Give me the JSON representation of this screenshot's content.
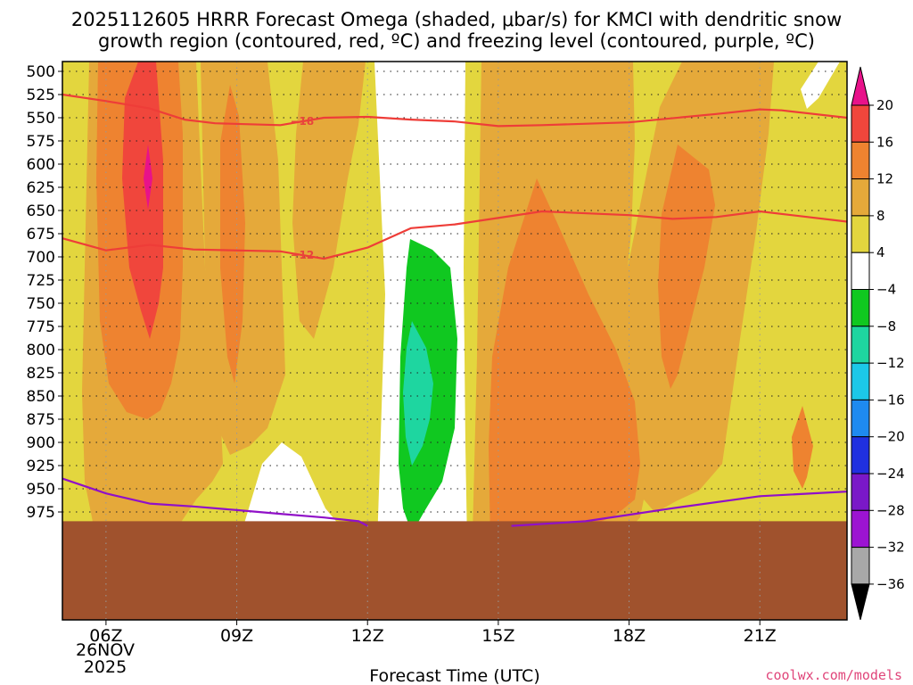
{
  "chart_data": {
    "type": "heatmap",
    "title_line1": "2025112605 HRRR Forecast Omega (shaded, μbar/s) for KMCI with dendritic snow",
    "title_line2": "growth region (contoured, red, ºC) and freezing level (contoured, purple, ºC)",
    "xlabel": "Forecast Time (UTC)",
    "x_ticks": [
      {
        "hour": 6,
        "label": "06Z"
      },
      {
        "hour": 9,
        "label": "09Z"
      },
      {
        "hour": 12,
        "label": "12Z"
      },
      {
        "hour": 15,
        "label": "15Z"
      },
      {
        "hour": 18,
        "label": "18Z"
      },
      {
        "hour": 21,
        "label": "21Z"
      }
    ],
    "x_date_line1": "26NOV",
    "x_date_line2": "2025",
    "xlim": [
      5.0,
      23.0
    ],
    "y_levels": [
      500,
      525,
      550,
      575,
      600,
      625,
      650,
      675,
      700,
      725,
      750,
      775,
      800,
      825,
      850,
      875,
      900,
      925,
      950,
      975
    ],
    "y_tick_labels": [
      "500",
      "525",
      "550",
      "575",
      "600",
      "625",
      "650",
      "675",
      "700",
      "725",
      "750",
      "775",
      "800",
      "825",
      "850",
      "875",
      "900",
      "925",
      "950",
      "975"
    ],
    "omega_bins": [
      {
        "label": "20",
        "color": "#e8128a"
      },
      {
        "label": "16",
        "color": "#f0463c"
      },
      {
        "label": "12",
        "color": "#ee8330"
      },
      {
        "label": "8",
        "color": "#e5a93a"
      },
      {
        "label": "4",
        "color": "#e3d63e"
      },
      {
        "label": "−4",
        "color": "#ffffff"
      },
      {
        "label": "−8",
        "color": "#10c820"
      },
      {
        "label": "−12",
        "color": "#1ed6a0"
      },
      {
        "label": "−16",
        "color": "#1cc8e8"
      },
      {
        "label": "−20",
        "color": "#1e8af0"
      },
      {
        "label": "−24",
        "color": "#2030e0"
      },
      {
        "label": "−28",
        "color": "#7a18c8"
      },
      {
        "label": "−32",
        "color": "#9c14d2"
      },
      {
        "label": "−36",
        "color": "#a8a8a8"
      }
    ],
    "colorbar_top_color": "#e8128a",
    "colorbar_bottom_color": "#000000",
    "contours": [
      {
        "name": "dendritic-minus18",
        "label": "−18",
        "color": "#ee3d38",
        "points": [
          [
            5.0,
            525
          ],
          [
            6.0,
            532
          ],
          [
            7.0,
            540
          ],
          [
            7.8,
            552
          ],
          [
            8.5,
            556
          ],
          [
            10.0,
            558
          ],
          [
            11.0,
            550
          ],
          [
            12.0,
            549
          ],
          [
            13.0,
            552
          ],
          [
            14.0,
            554
          ],
          [
            15.0,
            559
          ],
          [
            16.0,
            558
          ],
          [
            18.0,
            555
          ],
          [
            20.0,
            546
          ],
          [
            21.0,
            541
          ],
          [
            21.5,
            542
          ],
          [
            23.0,
            550
          ]
        ]
      },
      {
        "name": "dendritic-minus12",
        "label": "−12",
        "color": "#ee3d38",
        "points": [
          [
            5.0,
            680
          ],
          [
            6.0,
            693
          ],
          [
            7.0,
            687
          ],
          [
            8.0,
            692
          ],
          [
            10.0,
            694
          ],
          [
            11.0,
            702
          ],
          [
            12.0,
            690
          ],
          [
            13.0,
            669
          ],
          [
            14.0,
            665
          ],
          [
            16.0,
            651
          ],
          [
            18.0,
            655
          ],
          [
            19.0,
            659
          ],
          [
            20.0,
            657
          ],
          [
            21.0,
            651
          ],
          [
            23.0,
            662
          ]
        ]
      },
      {
        "name": "freezing-level-left",
        "label": "",
        "color": "#9010c8",
        "points": [
          [
            5.0,
            939
          ],
          [
            6.0,
            955
          ],
          [
            7.0,
            966
          ],
          [
            8.0,
            969
          ],
          [
            9.0,
            973
          ],
          [
            10.0,
            977
          ],
          [
            11.0,
            981
          ],
          [
            11.8,
            985
          ],
          [
            12.0,
            990
          ]
        ]
      },
      {
        "name": "freezing-level-right",
        "label": "",
        "color": "#9010c8",
        "points": [
          [
            15.3,
            990
          ],
          [
            17.0,
            985
          ],
          [
            18.0,
            978
          ],
          [
            19.0,
            971
          ],
          [
            21.0,
            958
          ],
          [
            23.0,
            953
          ]
        ]
      }
    ],
    "terrain": {
      "color": "#a0522d",
      "pressure_top": 985
    },
    "grid": true
  },
  "credit": "coolwx.com/models"
}
